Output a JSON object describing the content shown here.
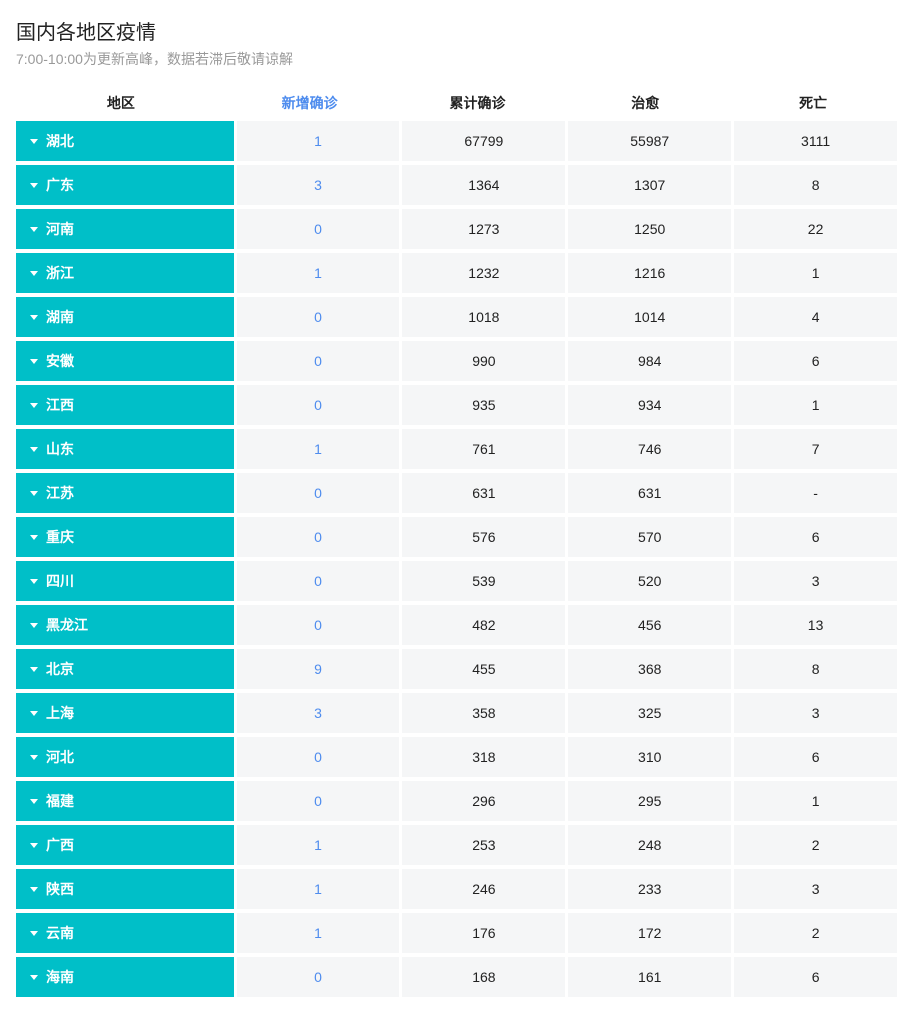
{
  "header": {
    "title": "国内各地区疫情",
    "subtitle": "7:00-10:00为更新高峰，数据若滞后敬请谅解"
  },
  "table": {
    "type": "table",
    "region_bg_color": "#00bfc8",
    "cell_bg_color": "#f5f6f7",
    "highlight_color": "#4e8cee",
    "text_color": "#222222",
    "columns": [
      {
        "key": "region",
        "label": "地区",
        "highlight": false
      },
      {
        "key": "new_cases",
        "label": "新增确诊",
        "highlight": true
      },
      {
        "key": "total_cases",
        "label": "累计确诊",
        "highlight": false
      },
      {
        "key": "recovered",
        "label": "治愈",
        "highlight": false
      },
      {
        "key": "deaths",
        "label": "死亡",
        "highlight": false
      }
    ],
    "rows": [
      {
        "region": "湖北",
        "new_cases": "1",
        "total_cases": "67799",
        "recovered": "55987",
        "deaths": "3111"
      },
      {
        "region": "广东",
        "new_cases": "3",
        "total_cases": "1364",
        "recovered": "1307",
        "deaths": "8"
      },
      {
        "region": "河南",
        "new_cases": "0",
        "total_cases": "1273",
        "recovered": "1250",
        "deaths": "22"
      },
      {
        "region": "浙江",
        "new_cases": "1",
        "total_cases": "1232",
        "recovered": "1216",
        "deaths": "1"
      },
      {
        "region": "湖南",
        "new_cases": "0",
        "total_cases": "1018",
        "recovered": "1014",
        "deaths": "4"
      },
      {
        "region": "安徽",
        "new_cases": "0",
        "total_cases": "990",
        "recovered": "984",
        "deaths": "6"
      },
      {
        "region": "江西",
        "new_cases": "0",
        "total_cases": "935",
        "recovered": "934",
        "deaths": "1"
      },
      {
        "region": "山东",
        "new_cases": "1",
        "total_cases": "761",
        "recovered": "746",
        "deaths": "7"
      },
      {
        "region": "江苏",
        "new_cases": "0",
        "total_cases": "631",
        "recovered": "631",
        "deaths": "-"
      },
      {
        "region": "重庆",
        "new_cases": "0",
        "total_cases": "576",
        "recovered": "570",
        "deaths": "6"
      },
      {
        "region": "四川",
        "new_cases": "0",
        "total_cases": "539",
        "recovered": "520",
        "deaths": "3"
      },
      {
        "region": "黑龙江",
        "new_cases": "0",
        "total_cases": "482",
        "recovered": "456",
        "deaths": "13"
      },
      {
        "region": "北京",
        "new_cases": "9",
        "total_cases": "455",
        "recovered": "368",
        "deaths": "8"
      },
      {
        "region": "上海",
        "new_cases": "3",
        "total_cases": "358",
        "recovered": "325",
        "deaths": "3"
      },
      {
        "region": "河北",
        "new_cases": "0",
        "total_cases": "318",
        "recovered": "310",
        "deaths": "6"
      },
      {
        "region": "福建",
        "new_cases": "0",
        "total_cases": "296",
        "recovered": "295",
        "deaths": "1"
      },
      {
        "region": "广西",
        "new_cases": "1",
        "total_cases": "253",
        "recovered": "248",
        "deaths": "2"
      },
      {
        "region": "陕西",
        "new_cases": "1",
        "total_cases": "246",
        "recovered": "233",
        "deaths": "3"
      },
      {
        "region": "云南",
        "new_cases": "1",
        "total_cases": "176",
        "recovered": "172",
        "deaths": "2"
      },
      {
        "region": "海南",
        "new_cases": "0",
        "total_cases": "168",
        "recovered": "161",
        "deaths": "6"
      }
    ]
  }
}
